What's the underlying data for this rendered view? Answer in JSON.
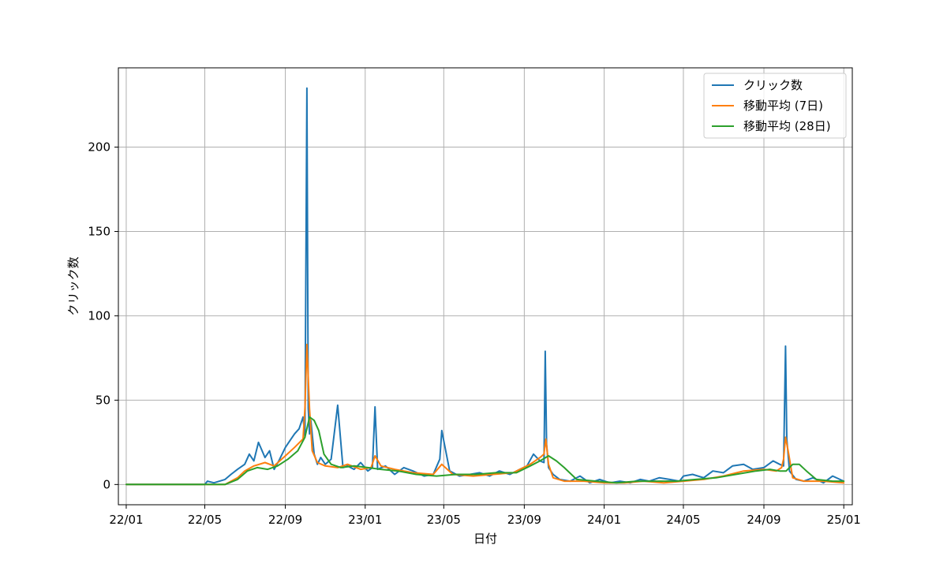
{
  "chart_data": {
    "type": "line",
    "title": "",
    "xlabel": "日付",
    "ylabel": "クリック数",
    "xlim": [
      "2021-12-20",
      "2025-01-14"
    ],
    "ylim": [
      -12,
      247
    ],
    "x_ticks": [
      "2022-01-01",
      "2022-05-01",
      "2022-09-01",
      "2023-01-01",
      "2023-05-01",
      "2023-09-01",
      "2024-01-01",
      "2024-05-01",
      "2024-09-01",
      "2025-01-01"
    ],
    "x_tick_labels": [
      "22/01",
      "22/05",
      "22/09",
      "23/01",
      "23/05",
      "23/09",
      "24/01",
      "24/05",
      "24/09",
      "25/01"
    ],
    "y_ticks": [
      0,
      50,
      100,
      150,
      200
    ],
    "y_tick_labels": [
      "0",
      "50",
      "100",
      "150",
      "200"
    ],
    "grid": true,
    "legend_position": "top-right",
    "series": [
      {
        "name": "クリック数",
        "color": "#1f77b4",
        "x": [
          "2022-01-01",
          "2022-02-01",
          "2022-03-01",
          "2022-04-01",
          "2022-05-01",
          "2022-05-05",
          "2022-05-15",
          "2022-06-01",
          "2022-06-10",
          "2022-06-20",
          "2022-07-01",
          "2022-07-08",
          "2022-07-15",
          "2022-07-22",
          "2022-08-01",
          "2022-08-08",
          "2022-08-15",
          "2022-08-22",
          "2022-09-01",
          "2022-09-08",
          "2022-09-15",
          "2022-09-22",
          "2022-09-28",
          "2022-10-01",
          "2022-10-04",
          "2022-10-06",
          "2022-10-08",
          "2022-10-10",
          "2022-10-15",
          "2022-10-20",
          "2022-10-25",
          "2022-11-01",
          "2022-11-10",
          "2022-11-20",
          "2022-11-28",
          "2022-12-05",
          "2022-12-15",
          "2022-12-25",
          "2023-01-05",
          "2023-01-12",
          "2023-01-16",
          "2023-01-20",
          "2023-02-01",
          "2023-02-15",
          "2023-03-01",
          "2023-03-15",
          "2023-04-01",
          "2023-04-15",
          "2023-04-25",
          "2023-04-28",
          "2023-05-10",
          "2023-05-25",
          "2023-06-10",
          "2023-06-25",
          "2023-07-10",
          "2023-07-25",
          "2023-08-10",
          "2023-08-25",
          "2023-09-05",
          "2023-09-15",
          "2023-09-25",
          "2023-10-01",
          "2023-10-03",
          "2023-10-05",
          "2023-10-08",
          "2023-10-15",
          "2023-10-25",
          "2023-11-10",
          "2023-11-25",
          "2023-12-10",
          "2023-12-25",
          "2024-01-10",
          "2024-01-25",
          "2024-02-10",
          "2024-02-25",
          "2024-03-10",
          "2024-03-25",
          "2024-04-10",
          "2024-04-25",
          "2024-05-01",
          "2024-05-15",
          "2024-06-01",
          "2024-06-15",
          "2024-07-01",
          "2024-07-15",
          "2024-08-01",
          "2024-08-15",
          "2024-09-01",
          "2024-09-15",
          "2024-09-25",
          "2024-10-01",
          "2024-10-04",
          "2024-10-06",
          "2024-10-10",
          "2024-10-20",
          "2024-11-01",
          "2024-11-15",
          "2024-12-01",
          "2024-12-15",
          "2025-01-01"
        ],
        "values": [
          0,
          0,
          0,
          0,
          0,
          2,
          1,
          3,
          6,
          9,
          12,
          18,
          14,
          25,
          16,
          20,
          9,
          14,
          22,
          26,
          30,
          33,
          40,
          28,
          235,
          45,
          30,
          38,
          18,
          12,
          16,
          12,
          15,
          47,
          10,
          11,
          9,
          13,
          8,
          10,
          46,
          9,
          11,
          6,
          10,
          8,
          5,
          6,
          15,
          32,
          8,
          5,
          6,
          7,
          5,
          8,
          6,
          9,
          11,
          18,
          14,
          13,
          79,
          24,
          10,
          6,
          3,
          2,
          5,
          1,
          3,
          1,
          2,
          1,
          3,
          2,
          4,
          3,
          2,
          5,
          6,
          4,
          8,
          7,
          11,
          12,
          9,
          10,
          14,
          12,
          11,
          82,
          27,
          8,
          3,
          2,
          4,
          1,
          5,
          2
        ]
      },
      {
        "name": "移動平均 (7日)",
        "color": "#ff7f0e",
        "x": [
          "2022-01-01",
          "2022-02-01",
          "2022-03-01",
          "2022-04-01",
          "2022-05-01",
          "2022-06-01",
          "2022-06-20",
          "2022-07-01",
          "2022-07-15",
          "2022-08-01",
          "2022-08-15",
          "2022-09-01",
          "2022-09-15",
          "2022-09-28",
          "2022-10-01",
          "2022-10-04",
          "2022-10-08",
          "2022-10-12",
          "2022-10-20",
          "2022-11-01",
          "2022-11-20",
          "2022-12-05",
          "2022-12-25",
          "2023-01-10",
          "2023-01-16",
          "2023-01-25",
          "2023-02-15",
          "2023-03-15",
          "2023-04-15",
          "2023-04-28",
          "2023-05-15",
          "2023-06-15",
          "2023-07-15",
          "2023-08-15",
          "2023-09-10",
          "2023-09-25",
          "2023-10-01",
          "2023-10-04",
          "2023-10-08",
          "2023-10-15",
          "2023-11-01",
          "2023-12-01",
          "2024-01-01",
          "2024-02-01",
          "2024-03-01",
          "2024-04-01",
          "2024-05-01",
          "2024-06-01",
          "2024-07-01",
          "2024-08-01",
          "2024-09-01",
          "2024-09-20",
          "2024-09-28",
          "2024-10-01",
          "2024-10-04",
          "2024-10-08",
          "2024-10-15",
          "2024-11-01",
          "2024-12-01",
          "2025-01-01"
        ],
        "values": [
          0,
          0,
          0,
          0,
          0,
          0,
          4,
          8,
          11,
          13,
          11,
          17,
          22,
          27,
          45,
          83,
          45,
          20,
          13,
          11,
          10,
          12,
          9,
          10,
          17,
          11,
          9,
          7,
          6,
          12,
          6,
          5,
          6,
          7,
          12,
          16,
          18,
          27,
          12,
          4,
          2,
          2,
          1,
          1,
          2,
          1,
          2,
          3,
          5,
          8,
          9,
          8,
          10,
          15,
          28,
          20,
          4,
          2,
          2,
          1
        ]
      },
      {
        "name": "移動平均 (28日)",
        "color": "#2ca02c",
        "x": [
          "2022-01-01",
          "2022-02-01",
          "2022-03-01",
          "2022-04-01",
          "2022-05-01",
          "2022-06-01",
          "2022-06-20",
          "2022-07-05",
          "2022-07-20",
          "2022-08-05",
          "2022-08-20",
          "2022-09-05",
          "2022-09-20",
          "2022-10-01",
          "2022-10-08",
          "2022-10-15",
          "2022-10-22",
          "2022-10-30",
          "2022-11-10",
          "2022-11-25",
          "2022-12-15",
          "2023-01-05",
          "2023-01-25",
          "2023-02-20",
          "2023-03-20",
          "2023-04-20",
          "2023-05-20",
          "2023-06-20",
          "2023-07-20",
          "2023-08-20",
          "2023-09-10",
          "2023-09-25",
          "2023-10-08",
          "2023-10-20",
          "2023-11-01",
          "2023-11-20",
          "2023-12-20",
          "2024-01-20",
          "2024-02-20",
          "2024-03-20",
          "2024-04-20",
          "2024-05-20",
          "2024-06-20",
          "2024-07-20",
          "2024-08-20",
          "2024-09-10",
          "2024-09-25",
          "2024-10-05",
          "2024-10-15",
          "2024-10-25",
          "2024-11-05",
          "2024-11-20",
          "2024-12-15",
          "2025-01-01"
        ],
        "values": [
          0,
          0,
          0,
          0,
          0,
          0,
          3,
          8,
          10,
          9,
          11,
          15,
          20,
          28,
          40,
          38,
          32,
          18,
          12,
          10,
          11,
          10,
          9,
          8,
          6,
          5,
          6,
          6,
          7,
          7,
          11,
          14,
          17,
          14,
          10,
          3,
          2,
          1,
          2,
          2,
          2,
          3,
          4,
          6,
          8,
          9,
          8,
          8,
          12,
          12,
          8,
          3,
          2,
          2
        ]
      }
    ]
  }
}
